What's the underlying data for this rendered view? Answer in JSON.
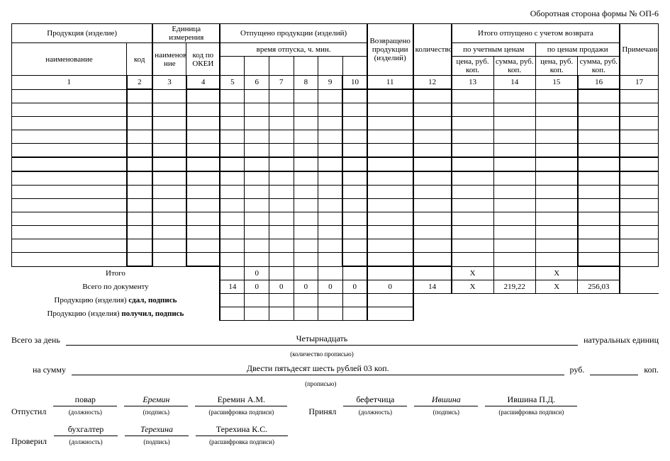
{
  "top_note": "Оборотная сторона формы № ОП-6",
  "head": {
    "product": "Продукция (изделие)",
    "naimen": "наименование",
    "kod": "код",
    "unit_group": "Единица измерения",
    "unit_name": "наименова­ние",
    "okei": "код по ОКЕИ",
    "otp_group": "Отпущено продукции (изделий)",
    "otp_time": "время отпуска, ч. мин.",
    "vozvr": "Возвращено продукции (изделий)",
    "kolvo": "количество",
    "itog_group": "Итого отпущено с учетом возврата",
    "price_acct": "по учетным ценам",
    "price_sale": "по ценам продажи",
    "cena": "цена, руб. коп.",
    "summa": "сумма, руб. коп.",
    "prim": "Примечание"
  },
  "cols": [
    "1",
    "2",
    "3",
    "4",
    "5",
    "6",
    "7",
    "8",
    "9",
    "10",
    "11",
    "12",
    "13",
    "14",
    "15",
    "16",
    "17"
  ],
  "row_labels": {
    "itogo": "Итого",
    "vsego_doc": "Всего по документу",
    "sdal": "Продукцию (изделия) <b>сдал, подпись</b>",
    "poluchil": "Продукцию (изделия) <b>получил, подпись</b>"
  },
  "totals": {
    "itogo": {
      "c6": "0",
      "c13": "X",
      "c15": "X"
    },
    "vsego": {
      "c5": "14",
      "c6": "0",
      "c7": "0",
      "c8": "0",
      "c9": "0",
      "c10": "0",
      "c11": "0",
      "c12": "14",
      "c13": "X",
      "c14": "219,22",
      "c15": "X",
      "c16": "256,03"
    }
  },
  "footer": {
    "day_label": "Всего за день",
    "day_value": "Четырнадцать",
    "day_hint": "(количество прописью)",
    "day_tail": "натуральных единиц",
    "sum_label": "на сумму",
    "sum_value": "Двести пятьдесят шесть рублей 03 коп.",
    "sum_hint": "(прописью)",
    "rub": "руб.",
    "kop": "коп.",
    "otpustil": "Отпустил",
    "proveril": "Проверил",
    "prinyal": "Принял",
    "pos": "(должность)",
    "sig": "(подпись)",
    "dec": "(расшифровка подписи)",
    "p1_pos": "повар",
    "p1_sig": "Еремин",
    "p1_dec": "Еремин А.М.",
    "p2_pos": "бефетчица",
    "p2_sig": "Ившина",
    "p2_dec": "Ившина П.Д.",
    "p3_pos": "бухгалтер",
    "p3_sig": "Терехина",
    "p3_dec": "Терехина К.С."
  }
}
